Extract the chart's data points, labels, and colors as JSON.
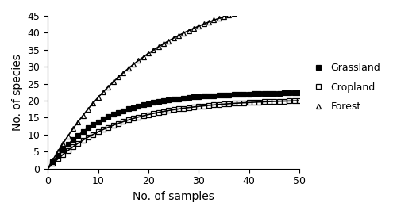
{
  "title": "",
  "xlabel": "No. of samples",
  "ylabel": "No. of species",
  "xlim": [
    0,
    50
  ],
  "ylim": [
    0,
    45
  ],
  "xticks": [
    0,
    10,
    20,
    30,
    40,
    50
  ],
  "yticks": [
    0,
    5,
    10,
    15,
    20,
    25,
    30,
    35,
    40,
    45
  ],
  "series": [
    {
      "label": "Grassland",
      "color": "black",
      "marker": "s",
      "fillstyle": "full",
      "a": 22.5,
      "b": 0.095
    },
    {
      "label": "Cropland",
      "color": "black",
      "marker": "s",
      "fillstyle": "none",
      "a": 20.5,
      "b": 0.075
    },
    {
      "label": "Forest",
      "color": "black",
      "marker": "^",
      "fillstyle": "none",
      "a": 55.0,
      "b": 0.048
    }
  ],
  "legend_fontsize": 9,
  "figsize": [
    5.0,
    2.7
  ],
  "dpi": 100
}
